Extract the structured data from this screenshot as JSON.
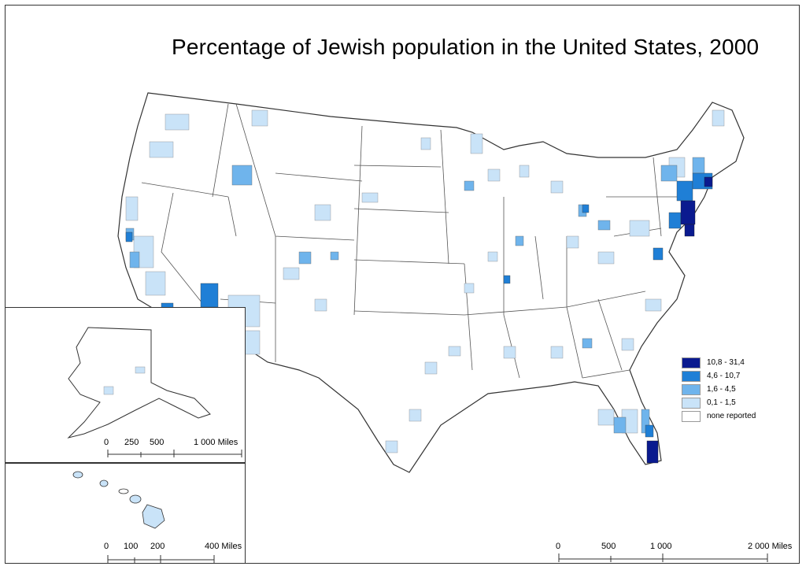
{
  "title": "Percentage of Jewish population in the United States, 2000",
  "colors": {
    "c5": "#0a1a8f",
    "c4": "#1f7fd6",
    "c3": "#6fb4ec",
    "c2": "#c9e3f8",
    "c1": "#ffffff",
    "border": "#555555"
  },
  "legend": [
    {
      "label": "10,8 - 31,4",
      "color": "#0a1a8f"
    },
    {
      "label": "4,6 - 10,7",
      "color": "#1f7fd6"
    },
    {
      "label": "1,6 - 4,5",
      "color": "#6fb4ec"
    },
    {
      "label": "0,1 - 1,5",
      "color": "#c9e3f8"
    },
    {
      "label": "none reported",
      "color": "#ffffff"
    }
  ],
  "scales": {
    "main": {
      "ticks": [
        "0",
        "500",
        "1 000",
        "2 000 Miles"
      ]
    },
    "alaska": {
      "ticks": [
        "0",
        "250",
        "500",
        "1 000 Miles"
      ]
    },
    "hawaii": {
      "ticks": [
        "0",
        "100",
        "200",
        "400 Miles"
      ]
    }
  }
}
